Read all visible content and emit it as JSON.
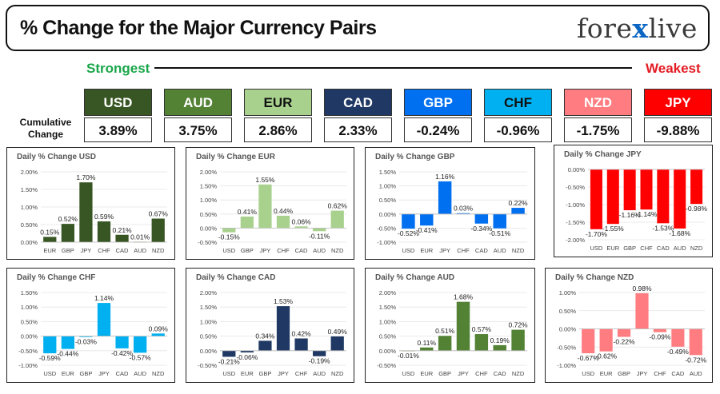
{
  "header": {
    "title": "% Change for the Major Currency Pairs",
    "logo_left": "fore",
    "logo_x": "x",
    "logo_right": "live"
  },
  "strongest_label": "Strongest",
  "weakest_label": "Weakest",
  "cumulative_label_line1": "Cumulative",
  "cumulative_label_line2": "Change",
  "currencies": [
    {
      "name": "USD",
      "value": "3.89%",
      "bg": "#375623",
      "fg": "#ffffff"
    },
    {
      "name": "AUD",
      "value": "3.75%",
      "bg": "#548235",
      "fg": "#ffffff"
    },
    {
      "name": "EUR",
      "value": "2.86%",
      "bg": "#a9d18e",
      "fg": "#111111"
    },
    {
      "name": "CAD",
      "value": "2.33%",
      "bg": "#1f3864",
      "fg": "#ffffff"
    },
    {
      "name": "GBP",
      "value": "-0.24%",
      "bg": "#0070f0",
      "fg": "#ffffff"
    },
    {
      "name": "CHF",
      "value": "-0.96%",
      "bg": "#00b0f0",
      "fg": "#111111"
    },
    {
      "name": "NZD",
      "value": "-1.75%",
      "bg": "#ff7c80",
      "fg": "#ffffff"
    },
    {
      "name": "JPY",
      "value": "-9.88%",
      "bg": "#ff0000",
      "fg": "#ffffff"
    }
  ],
  "chart_data": [
    {
      "type": "bar",
      "title": "Daily % Change USD",
      "color": "#375623",
      "categories": [
        "EUR",
        "GBP",
        "JPY",
        "CHF",
        "CAD",
        "AUD",
        "NZD"
      ],
      "values": [
        0.15,
        0.52,
        1.7,
        0.59,
        0.21,
        0.01,
        0.67
      ],
      "labels": [
        "0.15%",
        "0.52%",
        "1.70%",
        "0.59%",
        "0.21%",
        "0.01%",
        "0.67%"
      ],
      "ylim": [
        0,
        2
      ],
      "ticks": [
        0,
        0.5,
        1,
        1.5,
        2
      ],
      "tick_labels": [
        "0.00%",
        "0.50%",
        "1.00%",
        "1.50%",
        "2.00%"
      ]
    },
    {
      "type": "bar",
      "title": "Daily % Change EUR",
      "color": "#a9d18e",
      "categories": [
        "USD",
        "GBP",
        "JPY",
        "CHF",
        "CAD",
        "AUD",
        "NZD"
      ],
      "values": [
        -0.15,
        0.41,
        1.55,
        0.44,
        0.06,
        -0.11,
        0.62
      ],
      "labels": [
        "-0.15%",
        "0.41%",
        "1.55%",
        "0.44%",
        "0.06%",
        "-0.11%",
        "0.62%"
      ],
      "ylim": [
        -0.5,
        2
      ],
      "ticks": [
        -0.5,
        0,
        0.5,
        1,
        1.5,
        2
      ],
      "tick_labels": [
        "-0.50%",
        "0.00%",
        "0.50%",
        "1.00%",
        "1.50%",
        "2.00%"
      ]
    },
    {
      "type": "bar",
      "title": "Daily % Change GBP",
      "color": "#0070f0",
      "categories": [
        "USD",
        "EUR",
        "JPY",
        "CHF",
        "CAD",
        "AUD",
        "NZD"
      ],
      "values": [
        -0.52,
        -0.41,
        1.16,
        0.03,
        -0.34,
        -0.51,
        0.22
      ],
      "labels": [
        "-0.52%",
        "-0.41%",
        "1.16%",
        "0.03%",
        "-0.34%",
        "-0.51%",
        "0.22%"
      ],
      "ylim": [
        -1,
        1.5
      ],
      "ticks": [
        -1,
        -0.5,
        0,
        0.5,
        1,
        1.5
      ],
      "tick_labels": [
        "-1.00%",
        "-0.50%",
        "0.00%",
        "0.50%",
        "1.00%",
        "1.50%"
      ]
    },
    {
      "type": "bar",
      "title": "Daily % Change JPY",
      "color": "#ff0000",
      "categories": [
        "USD",
        "EUR",
        "GBP",
        "CHF",
        "CAD",
        "AUD",
        "NZD"
      ],
      "values": [
        -1.7,
        -1.55,
        -1.16,
        -1.14,
        -1.53,
        -1.68,
        -0.98
      ],
      "labels": [
        "-1.70%",
        "-1.55%",
        "-1.16%",
        "-1.14%",
        "-1.53%",
        "-1.68%",
        "-0.98%"
      ],
      "ylim": [
        -2,
        0
      ],
      "ticks": [
        -2,
        -1.5,
        -1,
        -0.5,
        0
      ],
      "tick_labels": [
        "-2.00%",
        "-1.50%",
        "-1.00%",
        "-0.50%",
        "0.00%"
      ]
    },
    {
      "type": "bar",
      "title": "Daily % Change CHF",
      "color": "#00b0f0",
      "categories": [
        "USD",
        "EUR",
        "GBP",
        "JPY",
        "CAD",
        "AUD",
        "NZD"
      ],
      "values": [
        -0.59,
        -0.44,
        -0.03,
        1.14,
        -0.42,
        -0.57,
        0.09
      ],
      "labels": [
        "-0.59%",
        "-0.44%",
        "-0.03%",
        "1.14%",
        "-0.42%",
        "-0.57%",
        "0.09%"
      ],
      "ylim": [
        -1,
        1.5
      ],
      "ticks": [
        -1,
        -0.5,
        0,
        0.5,
        1,
        1.5
      ],
      "tick_labels": [
        "-1.00%",
        "-0.50%",
        "0.00%",
        "0.50%",
        "1.00%",
        "1.50%"
      ]
    },
    {
      "type": "bar",
      "title": "Daily % Change CAD",
      "color": "#1f3864",
      "categories": [
        "USD",
        "EUR",
        "GBP",
        "JPY",
        "CHF",
        "AUD",
        "NZD"
      ],
      "values": [
        -0.21,
        -0.06,
        0.34,
        1.53,
        0.42,
        -0.19,
        0.49
      ],
      "labels": [
        "-0.21%",
        "-0.06%",
        "0.34%",
        "1.53%",
        "0.42%",
        "-0.19%",
        "0.49%"
      ],
      "ylim": [
        -0.5,
        2
      ],
      "ticks": [
        -0.5,
        0,
        0.5,
        1,
        1.5,
        2
      ],
      "tick_labels": [
        "-0.50%",
        "0.00%",
        "0.50%",
        "1.00%",
        "1.50%",
        "2.00%"
      ]
    },
    {
      "type": "bar",
      "title": "Daily % Change AUD",
      "color": "#548235",
      "categories": [
        "USD",
        "EUR",
        "GBP",
        "JPY",
        "CHF",
        "CAD",
        "NZD"
      ],
      "values": [
        -0.01,
        0.11,
        0.51,
        1.68,
        0.57,
        0.19,
        0.72
      ],
      "labels": [
        "-0.01%",
        "0.11%",
        "0.51%",
        "1.68%",
        "0.57%",
        "0.19%",
        "0.72%"
      ],
      "ylim": [
        -0.5,
        2
      ],
      "ticks": [
        -0.5,
        0,
        0.5,
        1,
        1.5,
        2
      ],
      "tick_labels": [
        "-0.50%",
        "0.00%",
        "0.50%",
        "1.00%",
        "1.50%",
        "2.00%"
      ]
    },
    {
      "type": "bar",
      "title": "Daily % Change NZD",
      "color": "#ff7c80",
      "categories": [
        "USD",
        "EUR",
        "GBP",
        "JPY",
        "CHF",
        "CAD",
        "AUD"
      ],
      "values": [
        -0.67,
        -0.62,
        -0.22,
        0.98,
        -0.09,
        -0.49,
        -0.72
      ],
      "labels": [
        "-0.67%",
        "-0.62%",
        "-0.22%",
        "0.98%",
        "-0.09%",
        "-0.49%",
        "-0.72%"
      ],
      "ylim": [
        -1,
        1
      ],
      "ticks": [
        -1,
        -0.5,
        0,
        0.5,
        1
      ],
      "tick_labels": [
        "-1.00%",
        "-0.50%",
        "0.00%",
        "0.50%",
        "1.00%"
      ]
    }
  ]
}
